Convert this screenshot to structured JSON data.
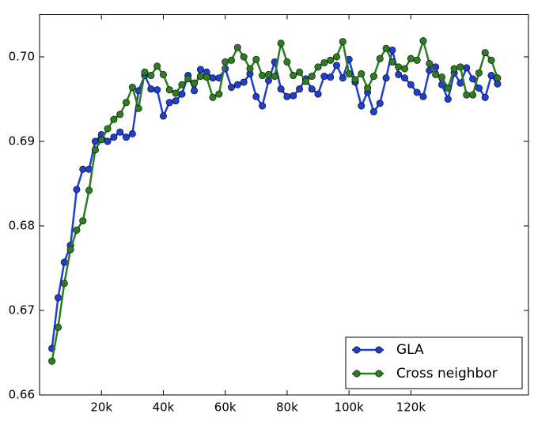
{
  "chart_data": {
    "type": "line",
    "x": [
      4000,
      6000,
      8000,
      10000,
      12000,
      14000,
      16000,
      18000,
      20000,
      22000,
      24000,
      26000,
      28000,
      30000,
      32000,
      34000,
      36000,
      38000,
      40000,
      42000,
      44000,
      46000,
      48000,
      50000,
      52000,
      54000,
      56000,
      58000,
      60000,
      62000,
      64000,
      66000,
      68000,
      70000,
      72000,
      74000,
      76000,
      78000,
      80000,
      82000,
      84000,
      86000,
      88000,
      90000,
      92000,
      94000,
      96000,
      98000,
      100000,
      102000,
      104000,
      106000,
      108000,
      110000,
      112000,
      114000,
      116000,
      118000,
      120000,
      122000,
      124000,
      126000,
      128000,
      130000,
      132000,
      134000,
      136000,
      138000,
      140000,
      142000,
      144000,
      146000,
      148000
    ],
    "series": [
      {
        "name": "GLA",
        "color": "#1f3fcc",
        "values": [
          0.6655,
          0.6715,
          0.6757,
          0.6777,
          0.6843,
          0.6867,
          0.6867,
          0.69,
          0.6908,
          0.69,
          0.6905,
          0.6911,
          0.6905,
          0.6909,
          0.696,
          0.6978,
          0.6962,
          0.6961,
          0.693,
          0.6946,
          0.6948,
          0.6956,
          0.6978,
          0.696,
          0.6985,
          0.6982,
          0.6975,
          0.6975,
          0.6986,
          0.6964,
          0.6967,
          0.697,
          0.698,
          0.6953,
          0.6942,
          0.6972,
          0.6994,
          0.6962,
          0.6953,
          0.6954,
          0.6962,
          0.6974,
          0.6962,
          0.6956,
          0.6977,
          0.6976,
          0.699,
          0.6975,
          0.6997,
          0.697,
          0.6942,
          0.6958,
          0.6935,
          0.6945,
          0.6975,
          0.7008,
          0.6979,
          0.6975,
          0.6967,
          0.6958,
          0.6953,
          0.6984,
          0.6988,
          0.6967,
          0.695,
          0.6981,
          0.6969,
          0.6987,
          0.6974,
          0.6963,
          0.6952,
          0.6978,
          0.6968
        ]
      },
      {
        "name": "Cross neighbor",
        "color": "#2e7d22",
        "values": [
          0.664,
          0.668,
          0.6732,
          0.6772,
          0.6795,
          0.6806,
          0.6842,
          0.689,
          0.6902,
          0.6915,
          0.6926,
          0.6932,
          0.6946,
          0.6964,
          0.6939,
          0.6982,
          0.6978,
          0.6989,
          0.6979,
          0.6961,
          0.6957,
          0.6967,
          0.6974,
          0.6969,
          0.6977,
          0.6976,
          0.6952,
          0.6956,
          0.6994,
          0.6996,
          0.7011,
          0.7,
          0.6986,
          0.6997,
          0.6978,
          0.6979,
          0.6977,
          0.7016,
          0.6994,
          0.6978,
          0.6982,
          0.6971,
          0.6977,
          0.6988,
          0.6993,
          0.6996,
          0.7,
          0.7018,
          0.698,
          0.6973,
          0.698,
          0.6963,
          0.6977,
          0.6998,
          0.701,
          0.6994,
          0.6988,
          0.6986,
          0.6998,
          0.6996,
          0.7019,
          0.6992,
          0.6979,
          0.6976,
          0.6963,
          0.6986,
          0.6988,
          0.6955,
          0.6955,
          0.6981,
          0.7005,
          0.6996,
          0.6975
        ]
      }
    ],
    "xlim": [
      0,
      158000
    ],
    "xticks": [
      {
        "value": 20000,
        "label": "20k"
      },
      {
        "value": 40000,
        "label": "40k"
      },
      {
        "value": 60000,
        "label": "60k"
      },
      {
        "value": 80000,
        "label": "80k"
      },
      {
        "value": 100000,
        "label": "100k"
      },
      {
        "value": 120000,
        "label": "120k"
      }
    ],
    "ylim": [
      0.66,
      0.705
    ],
    "yticks": [
      {
        "value": 0.66,
        "label": "0.66"
      },
      {
        "value": 0.67,
        "label": "0.67"
      },
      {
        "value": 0.68,
        "label": "0.68"
      },
      {
        "value": 0.69,
        "label": "0.69"
      },
      {
        "value": 0.7,
        "label": "0.70"
      }
    ],
    "legend": "lower right"
  }
}
